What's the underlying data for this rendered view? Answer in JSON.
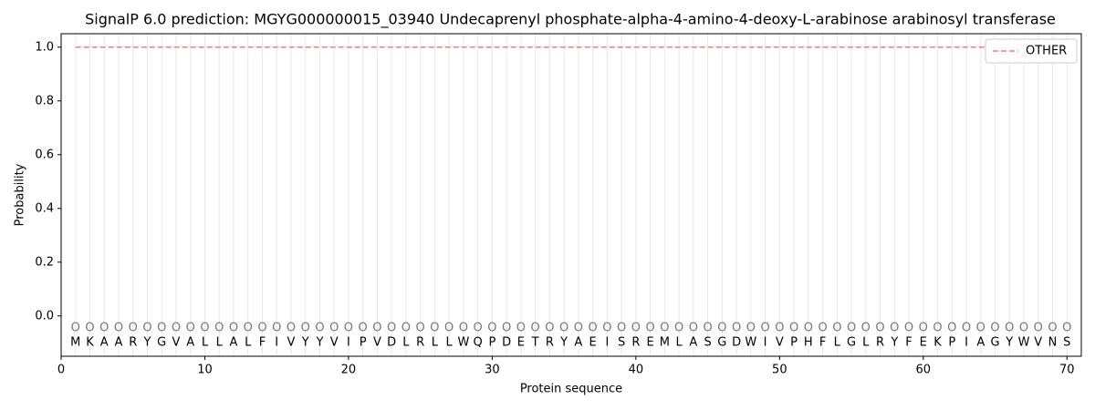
{
  "chart_data": {
    "type": "line",
    "title": "SignalP 6.0 prediction: MGYG000000015_03940 Undecaprenyl phosphate-alpha-4-amino-4-deoxy-L-arabinose arabinosyl transferase",
    "xlabel": "Protein sequence",
    "ylabel": "Probability",
    "x": [
      1,
      2,
      3,
      4,
      5,
      6,
      7,
      8,
      9,
      10,
      11,
      12,
      13,
      14,
      15,
      16,
      17,
      18,
      19,
      20,
      21,
      22,
      23,
      24,
      25,
      26,
      27,
      28,
      29,
      30,
      31,
      32,
      33,
      34,
      35,
      36,
      37,
      38,
      39,
      40,
      41,
      42,
      43,
      44,
      45,
      46,
      47,
      48,
      49,
      50,
      51,
      52,
      53,
      54,
      55,
      56,
      57,
      58,
      59,
      60,
      61,
      62,
      63,
      64,
      65,
      66,
      67,
      68,
      69,
      70
    ],
    "sequence": [
      "M",
      "K",
      "A",
      "A",
      "R",
      "Y",
      "G",
      "V",
      "A",
      "L",
      "L",
      "A",
      "L",
      "F",
      "I",
      "V",
      "Y",
      "Y",
      "V",
      "I",
      "P",
      "V",
      "D",
      "L",
      "R",
      "L",
      "L",
      "W",
      "Q",
      "P",
      "D",
      "E",
      "T",
      "R",
      "Y",
      "A",
      "E",
      "I",
      "S",
      "R",
      "E",
      "M",
      "L",
      "A",
      "S",
      "G",
      "D",
      "W",
      "I",
      "V",
      "P",
      "H",
      "F",
      "L",
      "G",
      "L",
      "R",
      "Y",
      "F",
      "E",
      "K",
      "P",
      "I",
      "A",
      "G",
      "Y",
      "W",
      "V",
      "N",
      "S"
    ],
    "labels": [
      "O",
      "O",
      "O",
      "O",
      "O",
      "O",
      "O",
      "O",
      "O",
      "O",
      "O",
      "O",
      "O",
      "O",
      "O",
      "O",
      "O",
      "O",
      "O",
      "O",
      "O",
      "O",
      "O",
      "O",
      "O",
      "O",
      "O",
      "O",
      "O",
      "O",
      "O",
      "O",
      "O",
      "O",
      "O",
      "O",
      "O",
      "O",
      "O",
      "O",
      "O",
      "O",
      "O",
      "O",
      "O",
      "O",
      "O",
      "O",
      "O",
      "O",
      "O",
      "O",
      "O",
      "O",
      "O",
      "O",
      "O",
      "O",
      "O",
      "O",
      "O",
      "O",
      "O",
      "O",
      "O",
      "O",
      "O",
      "O",
      "O",
      "O"
    ],
    "series": [
      {
        "name": "OTHER",
        "color": "#f08080",
        "dashed": true,
        "values": [
          1,
          1,
          1,
          1,
          1,
          1,
          1,
          1,
          1,
          1,
          1,
          1,
          1,
          1,
          1,
          1,
          1,
          1,
          1,
          1,
          1,
          1,
          1,
          1,
          1,
          1,
          1,
          1,
          1,
          1,
          1,
          1,
          1,
          1,
          1,
          1,
          1,
          1,
          1,
          1,
          1,
          1,
          1,
          1,
          1,
          1,
          1,
          1,
          1,
          1,
          1,
          1,
          1,
          1,
          1,
          1,
          1,
          1,
          1,
          1,
          1,
          1,
          1,
          1,
          1,
          1,
          1,
          1,
          1,
          1
        ]
      }
    ],
    "xlim": [
      0,
      71
    ],
    "xticks": [
      0,
      10,
      20,
      30,
      40,
      50,
      60,
      70
    ],
    "ylim": [
      -0.15,
      1.05
    ],
    "yticks": [
      {
        "value": 0,
        "label": "0.0"
      },
      {
        "value": 0.2,
        "label": "0.2"
      },
      {
        "value": 0.4,
        "label": "0.4"
      },
      {
        "value": 0.6,
        "label": "0.6"
      },
      {
        "value": 0.8,
        "label": "0.8"
      },
      {
        "value": 1,
        "label": "1.0"
      }
    ],
    "legend": "upper right"
  }
}
